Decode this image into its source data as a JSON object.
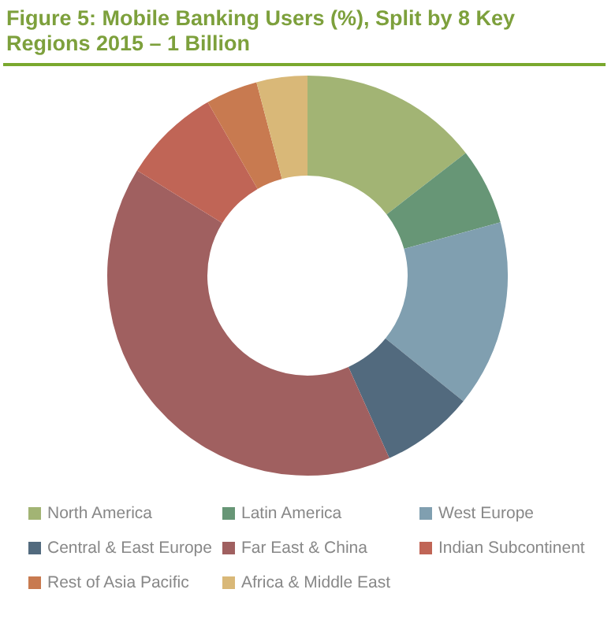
{
  "chart_data": {
    "type": "donut",
    "title": "Figure 5: Mobile Banking Users (%), Split by 8 Key Regions 2015 – 1 Billion",
    "categories": [
      "North America",
      "Latin America",
      "West Europe",
      "Central & East Europe",
      "Far East & China",
      "Indian Subcontinent",
      "Rest of Asia Pacific",
      "Africa & Middle East"
    ],
    "values": [
      14.5,
      6.2,
      15.1,
      7.5,
      40.5,
      7.9,
      4.2,
      4.1
    ],
    "colors": [
      "#a2b474",
      "#679676",
      "#809fb0",
      "#526a7e",
      "#a06060",
      "#c06556",
      "#c87a50",
      "#d9b878"
    ],
    "legend": "bottom"
  }
}
